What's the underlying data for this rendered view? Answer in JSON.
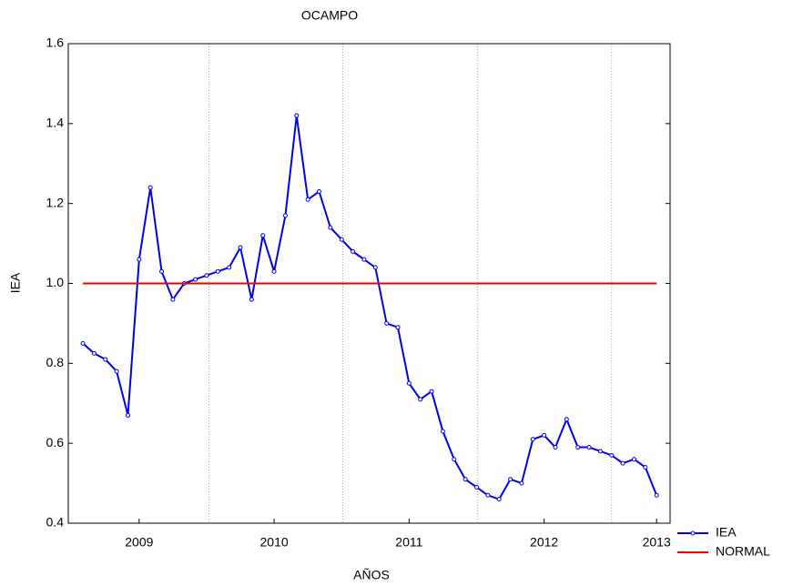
{
  "chart_data": {
    "type": "line",
    "title": "OCAMPO",
    "x_label": "AÑOS",
    "y_label": "IEA",
    "x": [
      0,
      1,
      2,
      3,
      4,
      5,
      6,
      7,
      8,
      9,
      10,
      11,
      12,
      13,
      14,
      15,
      16,
      17,
      18,
      19,
      20,
      21,
      22,
      23,
      24,
      25,
      26,
      27,
      28,
      29,
      30,
      31,
      32,
      33,
      34,
      35,
      36,
      37,
      38,
      39,
      40,
      41,
      42,
      43,
      44,
      45,
      46,
      47,
      48,
      49,
      50,
      51
    ],
    "series": [
      {
        "name": "IEA",
        "color": "#0000ee",
        "markers": true,
        "values": [
          0.85,
          0.825,
          0.81,
          0.78,
          0.67,
          1.06,
          1.24,
          1.03,
          0.96,
          1.0,
          1.01,
          1.02,
          1.03,
          1.04,
          1.09,
          0.96,
          1.12,
          1.03,
          1.17,
          1.42,
          1.21,
          1.23,
          1.14,
          1.11,
          1.08,
          1.06,
          1.04,
          0.9,
          0.89,
          0.75,
          0.71,
          0.73,
          0.63,
          0.56,
          0.51,
          0.49,
          0.47,
          0.46,
          0.51,
          0.5,
          0.61,
          0.62,
          0.59,
          0.66,
          0.59,
          0.59,
          0.58,
          0.57,
          0.55,
          0.56,
          0.54,
          0.47
        ]
      },
      {
        "name": "NORMAL",
        "color": "#ee0000",
        "markers": false,
        "values": [
          1,
          1,
          1,
          1,
          1,
          1,
          1,
          1,
          1,
          1,
          1,
          1,
          1,
          1,
          1,
          1,
          1,
          1,
          1,
          1,
          1,
          1,
          1,
          1,
          1,
          1,
          1,
          1,
          1,
          1,
          1,
          1,
          1,
          1,
          1,
          1,
          1,
          1,
          1,
          1,
          1,
          1,
          1,
          1,
          1,
          1,
          1,
          1,
          1,
          1,
          1,
          1
        ]
      }
    ],
    "xlim": [
      -1.3,
      52.2
    ],
    "xticks": [
      {
        "value": 5,
        "label": "2009"
      },
      {
        "value": 17,
        "label": "2010"
      },
      {
        "value": 29,
        "label": "2011"
      },
      {
        "value": 41,
        "label": "2012"
      },
      {
        "value": 51,
        "label": "2013"
      }
    ],
    "x_gridlines": [
      11.2,
      23.1,
      35.1,
      47
    ],
    "ylim": [
      0.4,
      1.6
    ],
    "yticks": [
      {
        "value": 0.4,
        "label": "0.4"
      },
      {
        "value": 0.6,
        "label": "0.6"
      },
      {
        "value": 0.8,
        "label": "0.8"
      },
      {
        "value": 1.0,
        "label": "1.0"
      },
      {
        "value": 1.2,
        "label": "1.2"
      },
      {
        "value": 1.4,
        "label": "1.4"
      },
      {
        "value": 1.6,
        "label": "1.6"
      }
    ],
    "legend": "bottom-right-outside"
  }
}
